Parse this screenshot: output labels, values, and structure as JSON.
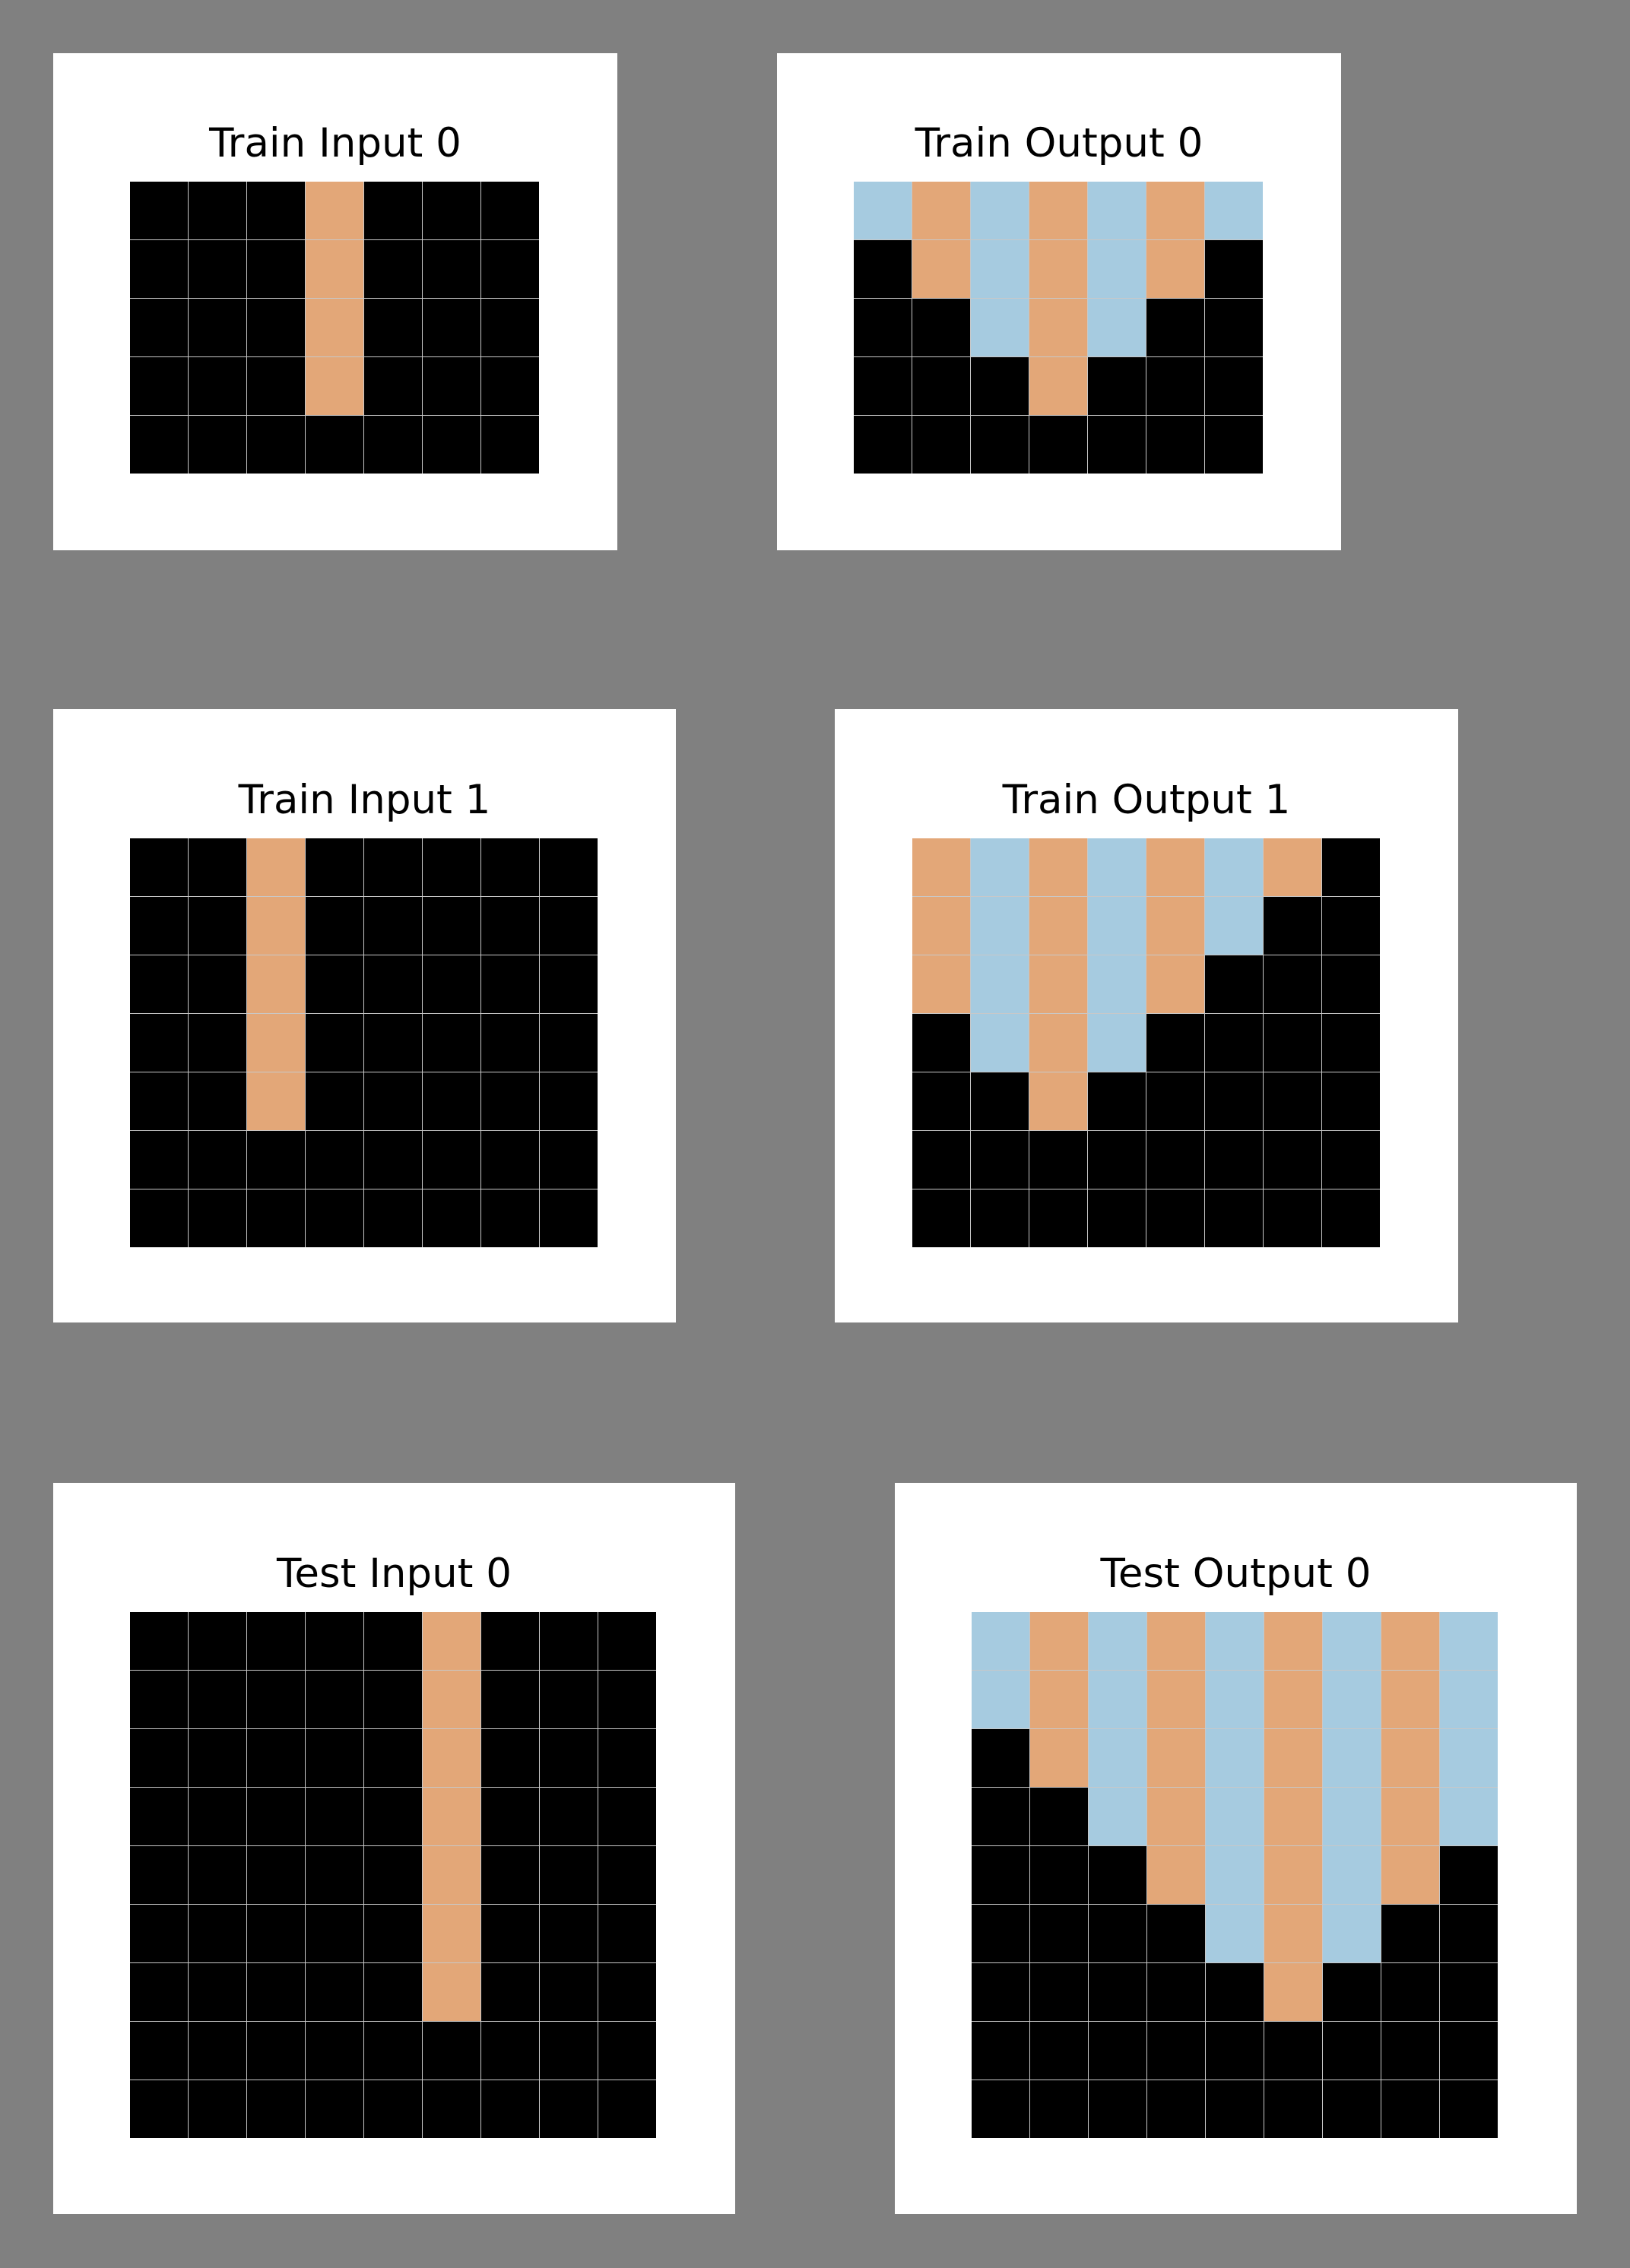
{
  "colors": {
    "0": "#000000",
    "7": "#a6cbe0",
    "8": "#e3a778",
    "background": "#808080",
    "panel": "#ffffff",
    "gridline": "#c8c8c8"
  },
  "panels": [
    {
      "id": "train-input-0",
      "title": "Train Input 0",
      "rows": [
        [
          0,
          0,
          0,
          8,
          0,
          0,
          0
        ],
        [
          0,
          0,
          0,
          8,
          0,
          0,
          0
        ],
        [
          0,
          0,
          0,
          8,
          0,
          0,
          0
        ],
        [
          0,
          0,
          0,
          8,
          0,
          0,
          0
        ],
        [
          0,
          0,
          0,
          0,
          0,
          0,
          0
        ]
      ]
    },
    {
      "id": "train-output-0",
      "title": "Train Output 0",
      "rows": [
        [
          7,
          8,
          7,
          8,
          7,
          8,
          7
        ],
        [
          0,
          8,
          7,
          8,
          7,
          8,
          0
        ],
        [
          0,
          0,
          7,
          8,
          7,
          0,
          0
        ],
        [
          0,
          0,
          0,
          8,
          0,
          0,
          0
        ],
        [
          0,
          0,
          0,
          0,
          0,
          0,
          0
        ]
      ]
    },
    {
      "id": "train-input-1",
      "title": "Train Input 1",
      "rows": [
        [
          0,
          0,
          8,
          0,
          0,
          0,
          0,
          0
        ],
        [
          0,
          0,
          8,
          0,
          0,
          0,
          0,
          0
        ],
        [
          0,
          0,
          8,
          0,
          0,
          0,
          0,
          0
        ],
        [
          0,
          0,
          8,
          0,
          0,
          0,
          0,
          0
        ],
        [
          0,
          0,
          8,
          0,
          0,
          0,
          0,
          0
        ],
        [
          0,
          0,
          0,
          0,
          0,
          0,
          0,
          0
        ],
        [
          0,
          0,
          0,
          0,
          0,
          0,
          0,
          0
        ]
      ]
    },
    {
      "id": "train-output-1",
      "title": "Train Output 1",
      "rows": [
        [
          8,
          7,
          8,
          7,
          8,
          7,
          8,
          0
        ],
        [
          8,
          7,
          8,
          7,
          8,
          7,
          0,
          0
        ],
        [
          8,
          7,
          8,
          7,
          8,
          0,
          0,
          0
        ],
        [
          0,
          7,
          8,
          7,
          0,
          0,
          0,
          0
        ],
        [
          0,
          0,
          8,
          0,
          0,
          0,
          0,
          0
        ],
        [
          0,
          0,
          0,
          0,
          0,
          0,
          0,
          0
        ],
        [
          0,
          0,
          0,
          0,
          0,
          0,
          0,
          0
        ]
      ]
    },
    {
      "id": "test-input-0",
      "title": "Test Input 0",
      "rows": [
        [
          0,
          0,
          0,
          0,
          0,
          8,
          0,
          0,
          0
        ],
        [
          0,
          0,
          0,
          0,
          0,
          8,
          0,
          0,
          0
        ],
        [
          0,
          0,
          0,
          0,
          0,
          8,
          0,
          0,
          0
        ],
        [
          0,
          0,
          0,
          0,
          0,
          8,
          0,
          0,
          0
        ],
        [
          0,
          0,
          0,
          0,
          0,
          8,
          0,
          0,
          0
        ],
        [
          0,
          0,
          0,
          0,
          0,
          8,
          0,
          0,
          0
        ],
        [
          0,
          0,
          0,
          0,
          0,
          8,
          0,
          0,
          0
        ],
        [
          0,
          0,
          0,
          0,
          0,
          0,
          0,
          0,
          0
        ],
        [
          0,
          0,
          0,
          0,
          0,
          0,
          0,
          0,
          0
        ]
      ]
    },
    {
      "id": "test-output-0",
      "title": "Test Output 0",
      "rows": [
        [
          7,
          8,
          7,
          8,
          7,
          8,
          7,
          8,
          7
        ],
        [
          7,
          8,
          7,
          8,
          7,
          8,
          7,
          8,
          7
        ],
        [
          0,
          8,
          7,
          8,
          7,
          8,
          7,
          8,
          7
        ],
        [
          0,
          0,
          7,
          8,
          7,
          8,
          7,
          8,
          7
        ],
        [
          0,
          0,
          0,
          8,
          7,
          8,
          7,
          8,
          0
        ],
        [
          0,
          0,
          0,
          0,
          7,
          8,
          7,
          0,
          0
        ],
        [
          0,
          0,
          0,
          0,
          0,
          8,
          0,
          0,
          0
        ],
        [
          0,
          0,
          0,
          0,
          0,
          0,
          0,
          0,
          0
        ],
        [
          0,
          0,
          0,
          0,
          0,
          0,
          0,
          0,
          0
        ]
      ]
    }
  ]
}
